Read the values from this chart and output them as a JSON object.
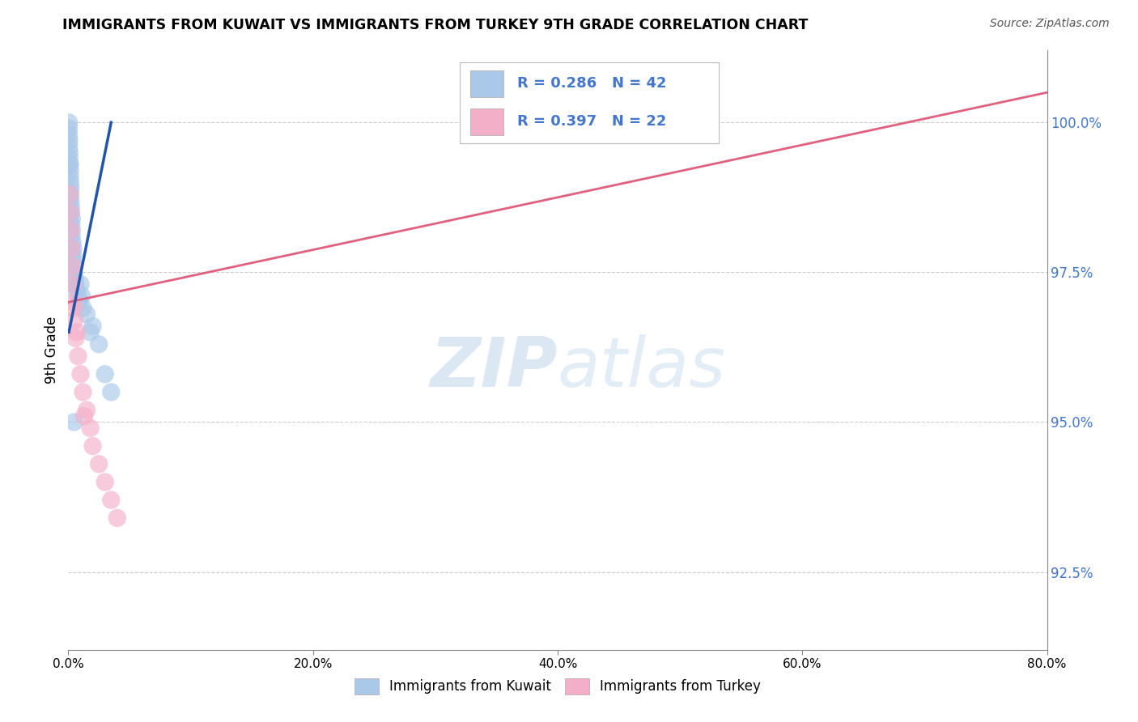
{
  "title": "IMMIGRANTS FROM KUWAIT VS IMMIGRANTS FROM TURKEY 9TH GRADE CORRELATION CHART",
  "source": "Source: ZipAtlas.com",
  "ylabel": "9th Grade",
  "y_ticks": [
    92.5,
    95.0,
    97.5,
    100.0
  ],
  "y_tick_labels": [
    "92.5%",
    "95.0%",
    "97.5%",
    "100.0%"
  ],
  "x_ticks": [
    0.0,
    20.0,
    40.0,
    60.0,
    80.0
  ],
  "x_tick_labels": [
    "0.0%",
    "20.0%",
    "40.0%",
    "60.0%",
    "80.0%"
  ],
  "xlim": [
    0.0,
    80.0
  ],
  "ylim": [
    91.2,
    101.2
  ],
  "kuwait_R": 0.286,
  "kuwait_N": 42,
  "turkey_R": 0.397,
  "turkey_N": 22,
  "kuwait_color": "#aac8e8",
  "turkey_color": "#f4afc8",
  "kuwait_line_color": "#2255aa",
  "turkey_line_color": "#e06080",
  "legend_text_color": "#4477cc",
  "watermark_color": "#ccdff0",
  "kuwait_x": [
    0.05,
    0.05,
    0.05,
    0.07,
    0.1,
    0.1,
    0.12,
    0.15,
    0.15,
    0.18,
    0.2,
    0.2,
    0.22,
    0.25,
    0.25,
    0.3,
    0.3,
    0.35,
    0.4,
    0.4,
    0.45,
    0.5,
    0.55,
    0.6,
    0.7,
    0.8,
    0.9,
    1.0,
    1.1,
    1.2,
    1.5,
    1.8,
    2.0,
    2.5,
    3.0,
    3.5,
    0.08,
    0.13,
    0.18,
    0.28,
    0.38,
    0.48
  ],
  "kuwait_y": [
    100.0,
    99.9,
    99.8,
    99.6,
    99.5,
    99.4,
    99.3,
    99.2,
    99.1,
    99.0,
    98.9,
    98.7,
    98.6,
    98.5,
    98.3,
    98.4,
    98.2,
    98.0,
    97.9,
    97.7,
    97.5,
    97.6,
    97.4,
    97.3,
    97.2,
    97.1,
    97.0,
    97.3,
    97.1,
    96.9,
    96.8,
    96.5,
    96.6,
    96.3,
    95.8,
    95.5,
    99.7,
    99.3,
    98.8,
    98.1,
    97.8,
    95.0
  ],
  "turkey_x": [
    0.1,
    0.15,
    0.2,
    0.25,
    0.3,
    0.35,
    0.4,
    0.5,
    0.6,
    0.8,
    1.0,
    1.2,
    1.5,
    1.8,
    2.0,
    2.5,
    3.0,
    3.5,
    4.0,
    0.45,
    0.7,
    1.3
  ],
  "turkey_y": [
    98.8,
    98.5,
    98.2,
    97.9,
    97.6,
    97.3,
    97.0,
    96.7,
    96.4,
    96.1,
    95.8,
    95.5,
    95.2,
    94.9,
    94.6,
    94.3,
    94.0,
    93.7,
    93.4,
    96.9,
    96.5,
    95.1
  ],
  "turkey_line_x0": 0.0,
  "turkey_line_x1": 80.0,
  "turkey_line_y0": 97.0,
  "turkey_line_y1": 100.5,
  "kuwait_line_x0": 0.05,
  "kuwait_line_x1": 3.5,
  "kuwait_line_y0": 96.5,
  "kuwait_line_y1": 100.0
}
